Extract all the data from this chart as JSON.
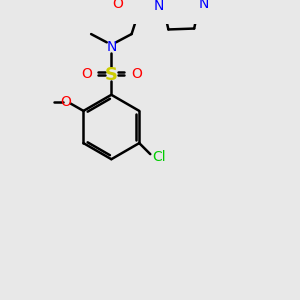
{
  "background_color": "#e8e8e8",
  "atom_colors": {
    "C": "#000000",
    "N": "#0000ff",
    "O": "#ff0000",
    "S": "#cccc00",
    "Cl": "#00cc00"
  },
  "figsize": [
    3.0,
    3.0
  ],
  "dpi": 100
}
